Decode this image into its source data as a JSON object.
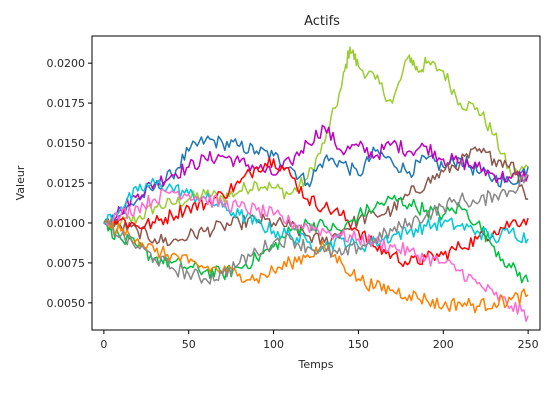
{
  "chart_data": {
    "type": "line",
    "title": "Actifs",
    "xlabel": "Temps",
    "ylabel": "Valeur",
    "xlim": [
      -7,
      257
    ],
    "ylim": [
      0.0033,
      0.0217
    ],
    "xticks": [
      0,
      50,
      100,
      150,
      200,
      250
    ],
    "xtick_labels": [
      "0",
      "50",
      "100",
      "150",
      "200",
      "250"
    ],
    "yticks": [
      0.005,
      0.0075,
      0.01,
      0.0125,
      0.015,
      0.0175,
      0.02
    ],
    "ytick_labels": [
      "0.0050",
      "0.0075",
      "0.0100",
      "0.0125",
      "0.0150",
      "0.0175",
      "0.0200"
    ],
    "grid": false,
    "legend": "none",
    "series": [
      {
        "color": "#9acd32",
        "x": [
          0,
          10,
          20,
          30,
          40,
          50,
          60,
          70,
          80,
          90,
          100,
          110,
          120,
          130,
          140,
          145,
          150,
          160,
          170,
          180,
          185,
          190,
          200,
          210,
          220,
          230,
          240,
          250
        ],
        "y": [
          0.01,
          0.01,
          0.0103,
          0.011,
          0.0112,
          0.0115,
          0.0118,
          0.0116,
          0.012,
          0.0125,
          0.0122,
          0.0118,
          0.0128,
          0.015,
          0.0185,
          0.021,
          0.0198,
          0.019,
          0.0175,
          0.0205,
          0.0195,
          0.02,
          0.0195,
          0.0175,
          0.0172,
          0.0155,
          0.013,
          0.0135
        ]
      },
      {
        "color": "#1f77b4",
        "x": [
          0,
          10,
          20,
          30,
          40,
          50,
          60,
          70,
          80,
          90,
          100,
          110,
          120,
          130,
          140,
          150,
          160,
          170,
          180,
          190,
          200,
          210,
          220,
          230,
          240,
          250
        ],
        "y": [
          0.01,
          0.0105,
          0.0115,
          0.0122,
          0.013,
          0.0145,
          0.0152,
          0.015,
          0.0148,
          0.0145,
          0.0142,
          0.0135,
          0.0125,
          0.014,
          0.0138,
          0.013,
          0.0145,
          0.0138,
          0.0132,
          0.014,
          0.0135,
          0.014,
          0.0132,
          0.0128,
          0.0125,
          0.0135
        ]
      },
      {
        "color": "#c000c0",
        "x": [
          0,
          10,
          20,
          30,
          40,
          50,
          60,
          70,
          80,
          90,
          100,
          110,
          120,
          130,
          140,
          150,
          160,
          170,
          180,
          190,
          200,
          210,
          220,
          230,
          240,
          250
        ],
        "y": [
          0.01,
          0.0108,
          0.0118,
          0.0125,
          0.013,
          0.0135,
          0.014,
          0.0142,
          0.0138,
          0.0135,
          0.013,
          0.0138,
          0.015,
          0.016,
          0.0145,
          0.0148,
          0.0142,
          0.015,
          0.0145,
          0.0148,
          0.014,
          0.0138,
          0.0135,
          0.013,
          0.0128,
          0.013
        ]
      },
      {
        "color": "#8c564b",
        "x": [
          0,
          10,
          20,
          30,
          40,
          50,
          60,
          70,
          80,
          90,
          100,
          110,
          120,
          130,
          140,
          150,
          160,
          170,
          180,
          190,
          200,
          210,
          220,
          230,
          240,
          250
        ],
        "y": [
          0.01,
          0.0098,
          0.0095,
          0.009,
          0.0088,
          0.0092,
          0.0095,
          0.0098,
          0.01,
          0.0102,
          0.01,
          0.0098,
          0.0092,
          0.0088,
          0.0095,
          0.0102,
          0.0105,
          0.0108,
          0.0118,
          0.0125,
          0.0132,
          0.0138,
          0.0145,
          0.014,
          0.0138,
          0.0115
        ]
      },
      {
        "color": "#ff0000",
        "x": [
          0,
          10,
          20,
          30,
          40,
          50,
          60,
          70,
          80,
          90,
          100,
          110,
          120,
          130,
          140,
          150,
          160,
          170,
          180,
          190,
          200,
          210,
          220,
          230,
          240,
          250
        ],
        "y": [
          0.01,
          0.0102,
          0.0098,
          0.01,
          0.0105,
          0.011,
          0.0112,
          0.0118,
          0.0125,
          0.0135,
          0.014,
          0.013,
          0.0115,
          0.011,
          0.0105,
          0.0095,
          0.0085,
          0.008,
          0.0075,
          0.0078,
          0.008,
          0.0085,
          0.009,
          0.0095,
          0.01,
          0.0103
        ]
      },
      {
        "color": "#00c040",
        "x": [
          0,
          10,
          20,
          30,
          40,
          50,
          60,
          70,
          80,
          90,
          100,
          110,
          120,
          130,
          140,
          150,
          160,
          170,
          180,
          190,
          200,
          210,
          220,
          230,
          240,
          250
        ],
        "y": [
          0.01,
          0.009,
          0.0085,
          0.0078,
          0.0075,
          0.0072,
          0.007,
          0.0068,
          0.0072,
          0.0078,
          0.0085,
          0.0095,
          0.01,
          0.0098,
          0.0095,
          0.0105,
          0.011,
          0.0115,
          0.0112,
          0.0108,
          0.0105,
          0.011,
          0.01,
          0.0085,
          0.0072,
          0.0063
        ]
      },
      {
        "color": "#00c8d8",
        "x": [
          0,
          10,
          20,
          30,
          40,
          50,
          60,
          70,
          80,
          90,
          100,
          110,
          120,
          130,
          140,
          150,
          160,
          170,
          180,
          190,
          200,
          210,
          220,
          230,
          240,
          250
        ],
        "y": [
          0.01,
          0.011,
          0.012,
          0.0125,
          0.0122,
          0.0118,
          0.0115,
          0.011,
          0.0105,
          0.01,
          0.0095,
          0.0092,
          0.0088,
          0.0085,
          0.009,
          0.0085,
          0.0088,
          0.0092,
          0.0095,
          0.0098,
          0.01,
          0.0098,
          0.0095,
          0.009,
          0.0095,
          0.009
        ]
      },
      {
        "color": "#ff69d0",
        "x": [
          0,
          10,
          20,
          30,
          40,
          50,
          60,
          70,
          80,
          90,
          100,
          110,
          120,
          130,
          140,
          150,
          160,
          170,
          180,
          190,
          200,
          210,
          220,
          230,
          240,
          250
        ],
        "y": [
          0.01,
          0.0105,
          0.011,
          0.0115,
          0.012,
          0.0118,
          0.0115,
          0.0112,
          0.011,
          0.0108,
          0.0105,
          0.01,
          0.0098,
          0.0095,
          0.0092,
          0.009,
          0.0088,
          0.0085,
          0.0082,
          0.0078,
          0.0075,
          0.007,
          0.0062,
          0.0055,
          0.0048,
          0.0042
        ]
      },
      {
        "color": "#ff8000",
        "x": [
          0,
          10,
          20,
          30,
          40,
          50,
          60,
          70,
          80,
          90,
          100,
          110,
          120,
          130,
          140,
          150,
          160,
          170,
          180,
          190,
          200,
          210,
          220,
          230,
          240,
          250
        ],
        "y": [
          0.01,
          0.0095,
          0.009,
          0.0082,
          0.008,
          0.0075,
          0.0072,
          0.007,
          0.0068,
          0.0065,
          0.007,
          0.0075,
          0.008,
          0.0085,
          0.0075,
          0.0065,
          0.006,
          0.0058,
          0.0055,
          0.0052,
          0.0048,
          0.005,
          0.0048,
          0.005,
          0.0052,
          0.0055
        ]
      },
      {
        "color": "#888888",
        "x": [
          0,
          10,
          20,
          30,
          40,
          50,
          60,
          70,
          80,
          90,
          100,
          110,
          120,
          130,
          140,
          150,
          160,
          170,
          180,
          190,
          200,
          210,
          220,
          230,
          240,
          250
        ],
        "y": [
          0.01,
          0.0092,
          0.0085,
          0.0078,
          0.0072,
          0.0068,
          0.0065,
          0.0068,
          0.0075,
          0.0082,
          0.0088,
          0.009,
          0.0085,
          0.0082,
          0.008,
          0.0085,
          0.009,
          0.0095,
          0.01,
          0.0105,
          0.011,
          0.0115,
          0.0112,
          0.0118,
          0.012,
          0.013
        ]
      }
    ]
  }
}
